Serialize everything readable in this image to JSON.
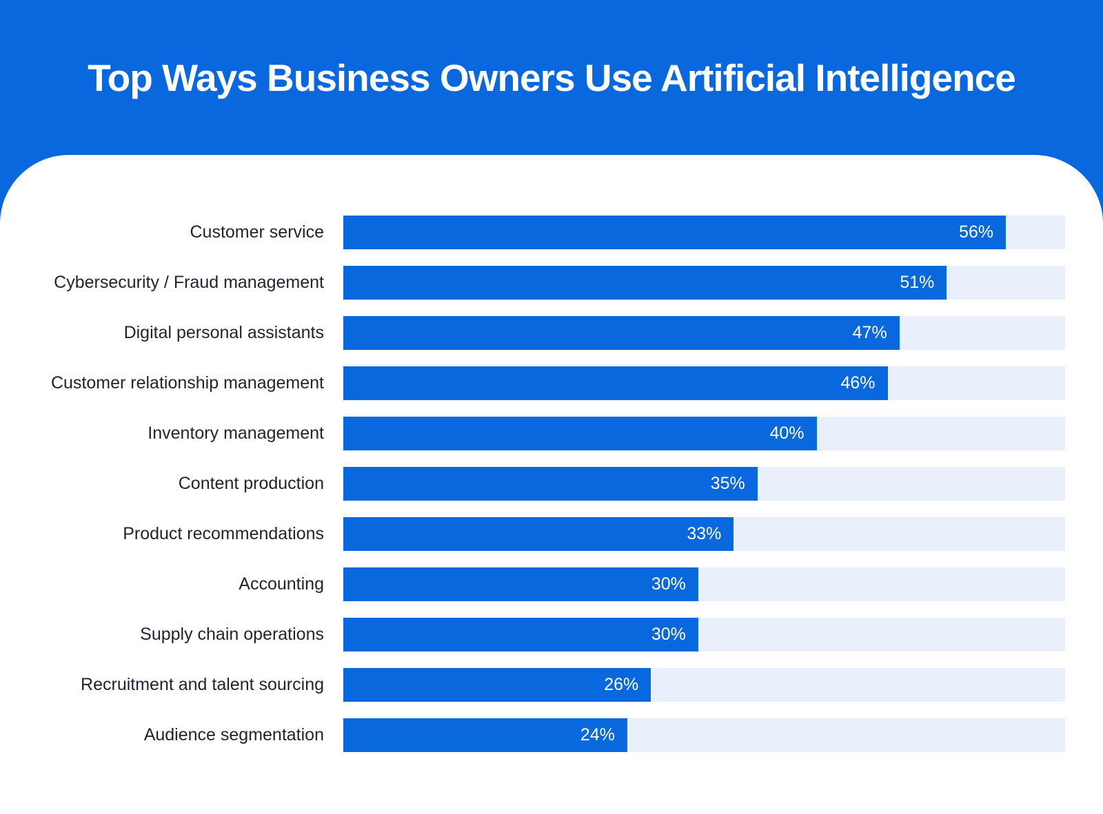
{
  "header": {
    "title": "Top Ways Business Owners Use Artificial Intelligence",
    "background_color": "#0A68DF",
    "title_color": "#FFFFFF"
  },
  "chart_data": {
    "type": "bar",
    "orientation": "horizontal",
    "title": "Top Ways Business Owners Use Artificial Intelligence",
    "categories": [
      "Customer service",
      "Cybersecurity / Fraud management",
      "Digital personal assistants",
      "Customer relationship management",
      "Inventory management",
      "Content production",
      "Product recommendations",
      "Accounting",
      "Supply chain operations",
      "Recruitment and talent sourcing",
      "Audience segmentation"
    ],
    "values": [
      56,
      51,
      47,
      46,
      40,
      35,
      33,
      30,
      30,
      26,
      24
    ],
    "value_suffix": "%",
    "value_labels": [
      "56%",
      "51%",
      "47%",
      "46%",
      "40%",
      "35%",
      "33%",
      "30%",
      "30%",
      "26%",
      "24%"
    ],
    "xlim": [
      0,
      61
    ],
    "grid": false,
    "legend": false,
    "bar_color": "#0A68DF",
    "track_color": "#E9EFFB",
    "category_label_color": "#1F2430",
    "value_label_color": "#FFFFFF"
  }
}
